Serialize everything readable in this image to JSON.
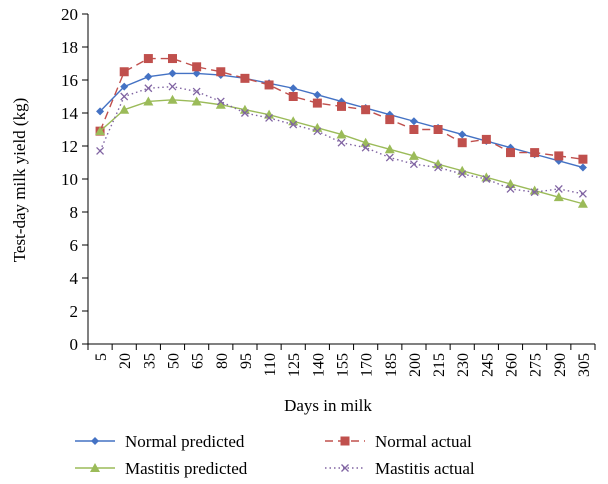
{
  "chart_data": {
    "type": "line",
    "xlabel": "Days in milk",
    "ylabel": "Test-day milk yield (kg)",
    "ylim": [
      0,
      20
    ],
    "yticks": [
      "0",
      "2",
      "4",
      "6",
      "8",
      "10",
      "12",
      "14",
      "16",
      "18",
      "20"
    ],
    "categories": [
      "5",
      "20",
      "35",
      "50",
      "65",
      "80",
      "95",
      "110",
      "125",
      "140",
      "155",
      "170",
      "185",
      "200",
      "215",
      "230",
      "245",
      "260",
      "275",
      "290",
      "305"
    ],
    "grid": false,
    "legend_position": "bottom",
    "series": [
      {
        "name": "Normal predicted",
        "color": "#4472c4",
        "marker": "diamond",
        "dash": "solid",
        "values": [
          14.1,
          15.6,
          16.2,
          16.4,
          16.4,
          16.3,
          16.1,
          15.8,
          15.5,
          15.1,
          14.7,
          14.3,
          13.9,
          13.5,
          13.1,
          12.7,
          12.3,
          11.9,
          11.5,
          11.1,
          10.7
        ]
      },
      {
        "name": "Normal actual",
        "color": "#c0504d",
        "marker": "square",
        "dash": "dashed",
        "values": [
          12.9,
          16.5,
          17.3,
          17.3,
          16.8,
          16.5,
          16.1,
          15.7,
          15.0,
          14.6,
          14.4,
          14.2,
          13.6,
          13.0,
          13.0,
          12.2,
          12.4,
          11.6,
          11.6,
          11.4,
          11.2
        ]
      },
      {
        "name": "Mastitis predicted",
        "color": "#9bbb59",
        "marker": "triangle",
        "dash": "solid",
        "values": [
          12.9,
          14.2,
          14.7,
          14.8,
          14.7,
          14.5,
          14.2,
          13.9,
          13.5,
          13.1,
          12.7,
          12.2,
          11.8,
          11.4,
          10.9,
          10.5,
          10.1,
          9.7,
          9.3,
          8.9,
          8.5
        ]
      },
      {
        "name": "Mastitis actual",
        "color": "#8064a2",
        "marker": "x",
        "dash": "dotted",
        "values": [
          11.7,
          15.0,
          15.5,
          15.6,
          15.3,
          14.7,
          14.0,
          13.7,
          13.3,
          12.9,
          12.2,
          11.9,
          11.3,
          10.9,
          10.7,
          10.3,
          10.0,
          9.4,
          9.2,
          9.4,
          9.1
        ]
      }
    ]
  }
}
